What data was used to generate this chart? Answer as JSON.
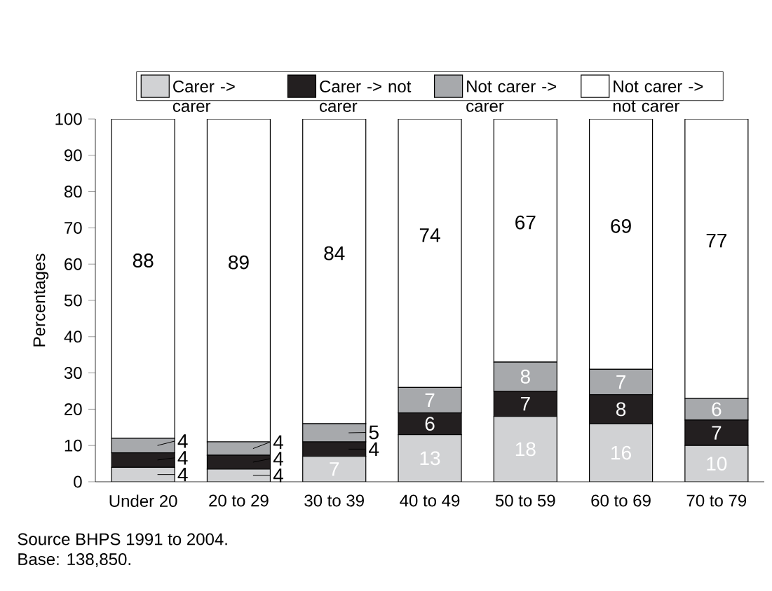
{
  "chart_data": {
    "type": "bar",
    "stacked": true,
    "ylabel": "Percentages",
    "categories": [
      "Under 20",
      "20 to 29",
      "30 to 39",
      "40 to 49",
      "50 to 59",
      "60 to 69",
      "70 to 79"
    ],
    "series": [
      {
        "name": "Carer -> carer",
        "color": "#d1d2d4",
        "values": [
          4,
          3.5,
          7,
          13,
          18,
          16,
          10
        ],
        "value_labels": [
          "4",
          "4",
          "7",
          "13",
          "18",
          "16",
          "10"
        ]
      },
      {
        "name": "Carer -> not carer",
        "color": "#231f20",
        "values": [
          4,
          3.8,
          4,
          6,
          7,
          8,
          7
        ],
        "value_labels": [
          "4",
          "4",
          "4",
          "6",
          "7",
          "8",
          "7"
        ]
      },
      {
        "name": "Not carer -> carer",
        "color": "#a7a9ac",
        "values": [
          4,
          3.7,
          5,
          7,
          8,
          7,
          6
        ],
        "value_labels": [
          "4",
          "4",
          "5",
          "7",
          "8",
          "7",
          "6"
        ]
      },
      {
        "name": "Not carer -> not carer",
        "color": "#ffffff",
        "values": [
          88,
          89,
          84,
          74,
          67,
          69,
          77
        ],
        "value_labels": [
          "88",
          "89",
          "84",
          "74",
          "67",
          "69",
          "77"
        ]
      }
    ],
    "ylim": [
      0,
      100
    ],
    "yticks": [
      0,
      10,
      20,
      30,
      40,
      50,
      60,
      70,
      80,
      90,
      100
    ],
    "grid": false,
    "legend": "top",
    "annotations": [
      "Source BHPS 1991 to 2004.",
      "Base: 138,850."
    ]
  }
}
